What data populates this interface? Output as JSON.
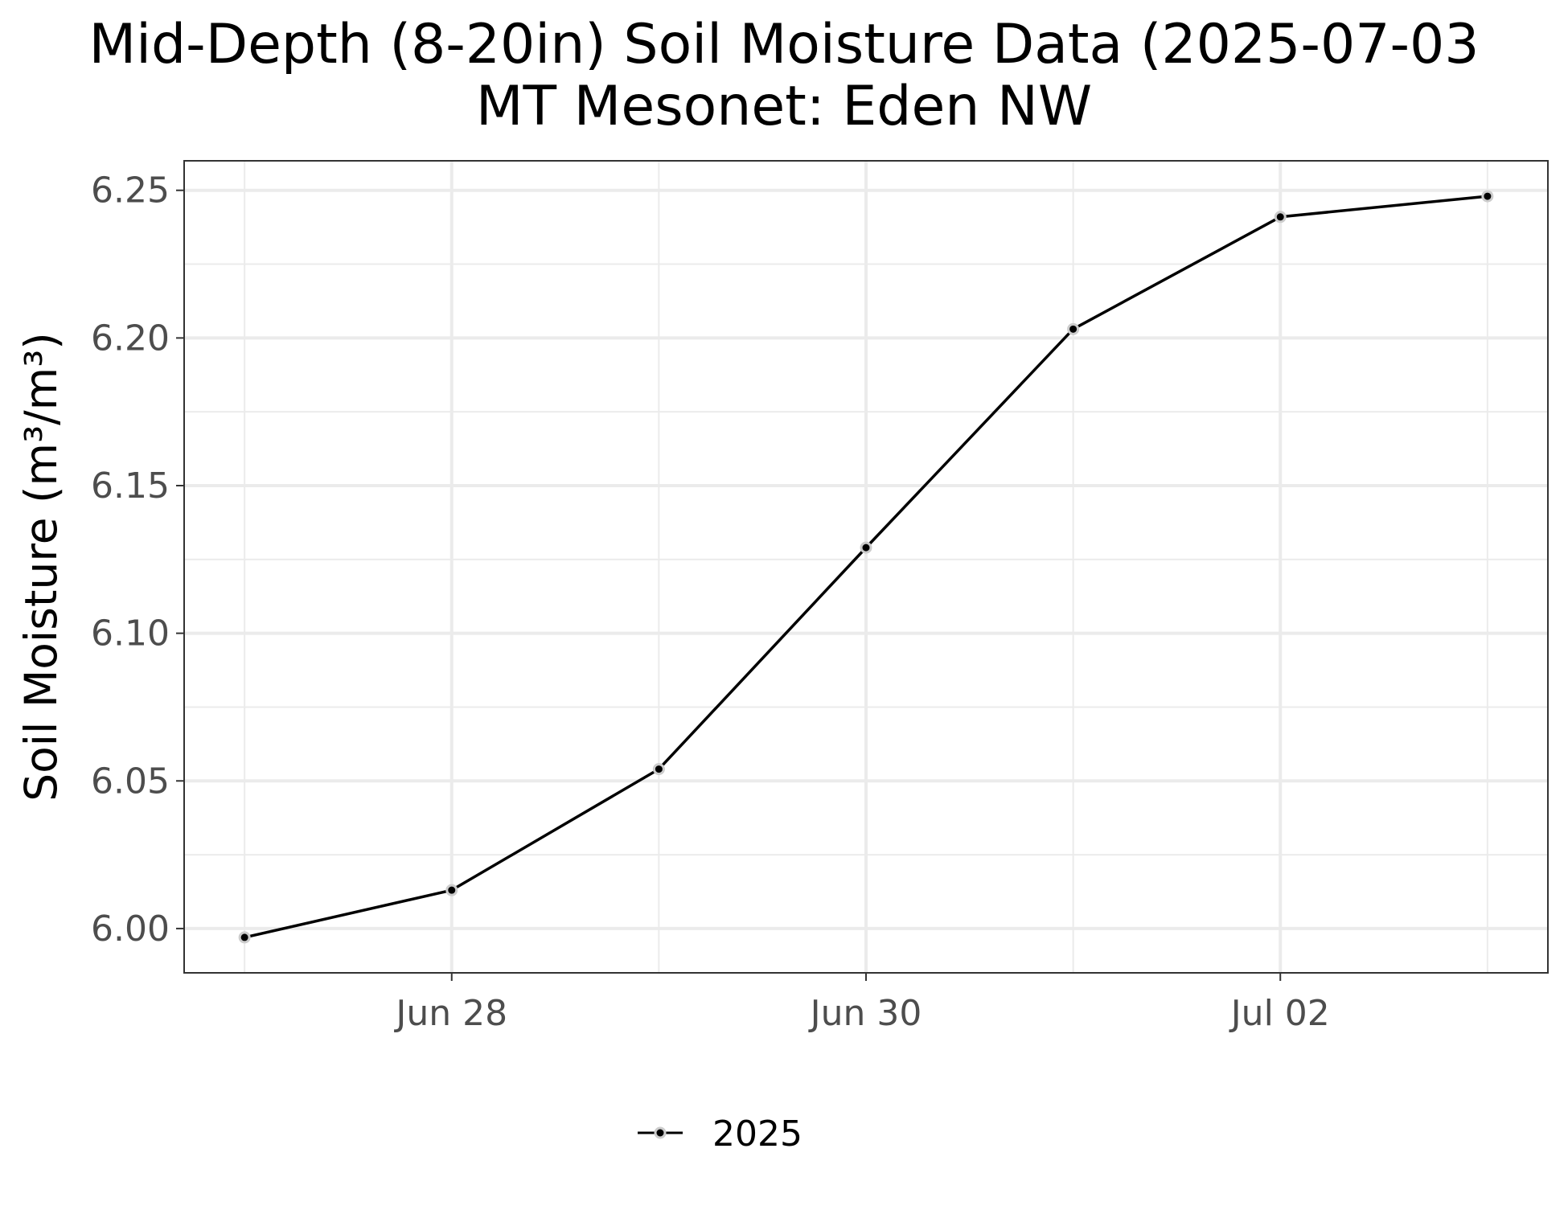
{
  "chart_data": {
    "type": "line",
    "title": "Mid-Depth (8-20in) Soil Moisture Data (2025-07-03",
    "subtitle": "MT Mesonet: Eden NW",
    "xlabel": "",
    "ylabel": "Soil Moisture (m³/m³)",
    "x": [
      "2025-06-27",
      "2025-06-28",
      "2025-06-29",
      "2025-06-30",
      "2025-07-01",
      "2025-07-02",
      "2025-07-03"
    ],
    "x_ticks": [
      "2025-06-28",
      "2025-06-30",
      "2025-07-02"
    ],
    "x_tick_labels": [
      "Jun 28",
      "Jun 30",
      "Jul 02"
    ],
    "x_range": [
      "2025-06-26T17:00",
      "2025-07-03T07:00"
    ],
    "y_ticks": [
      6.0,
      6.05,
      6.1,
      6.15,
      6.2,
      6.25
    ],
    "y_tick_labels": [
      "6.00",
      "6.05",
      "6.10",
      "6.15",
      "6.20",
      "6.25"
    ],
    "ylim": [
      5.985,
      6.26
    ],
    "grid": true,
    "legend_position": "bottom",
    "series": [
      {
        "name": "2025",
        "color": "#000000",
        "values": [
          5.997,
          6.013,
          6.054,
          6.129,
          6.203,
          6.241,
          6.248
        ]
      }
    ]
  }
}
